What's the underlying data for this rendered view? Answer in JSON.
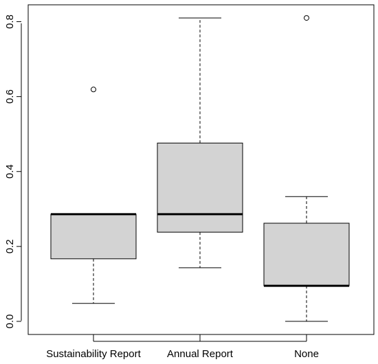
{
  "chart_data": {
    "type": "boxplot",
    "title": "",
    "xlabel": "",
    "ylabel": "",
    "ylim": [
      -0.035,
      0.845
    ],
    "yticks": [
      "0.0",
      "0.2",
      "0.4",
      "0.6",
      "0.8"
    ],
    "ytick_values": [
      0.0,
      0.2,
      0.4,
      0.6,
      0.8
    ],
    "categories": [
      "Sustainability Report",
      "Annual Report",
      "None"
    ],
    "box_fill": "#d3d3d3",
    "grid": false,
    "series": [
      {
        "category": "Sustainability Report",
        "min": 0.048,
        "q1": 0.167,
        "median": 0.286,
        "q3": 0.286,
        "max": 0.286,
        "outliers": [
          0.619
        ]
      },
      {
        "category": "Annual Report",
        "min": 0.143,
        "q1": 0.238,
        "median": 0.286,
        "q3": 0.476,
        "max": 0.81,
        "outliers": []
      },
      {
        "category": "None",
        "min": 0.0,
        "q1": 0.095,
        "median": 0.095,
        "q3": 0.262,
        "max": 0.333,
        "outliers": [
          0.81
        ]
      }
    ]
  }
}
